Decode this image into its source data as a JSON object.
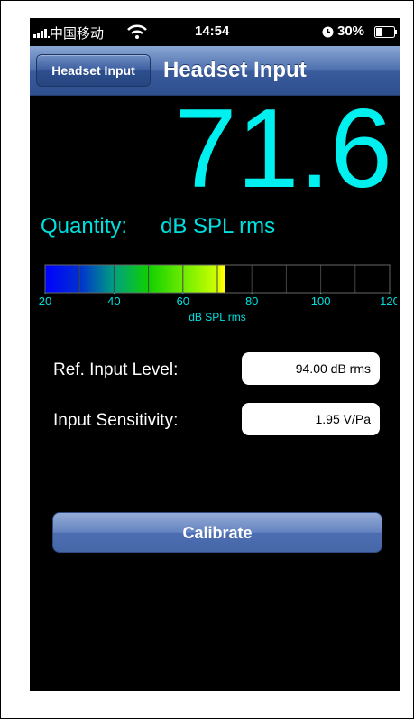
{
  "status_bar": {
    "carrier": "中国移动",
    "time": "14:54",
    "battery": "30%"
  },
  "nav_bar": {
    "back_button": "Headset Input",
    "title": "Headset Input"
  },
  "reading": {
    "value": 71.6,
    "quantity_label": "Quantity:",
    "quantity": "dB SPL rms"
  },
  "meter": {
    "range": [
      20,
      120
    ],
    "ticks": [
      20,
      40,
      60,
      80,
      100,
      120
    ],
    "unit": "dB SPL rms"
  },
  "fields": [
    {
      "label": "Ref. Input Level:",
      "value": "94.00 dB rms"
    },
    {
      "label": "Input Sensitivity:",
      "value": "1.95 V/Pa"
    }
  ],
  "button": "Calibrate"
}
